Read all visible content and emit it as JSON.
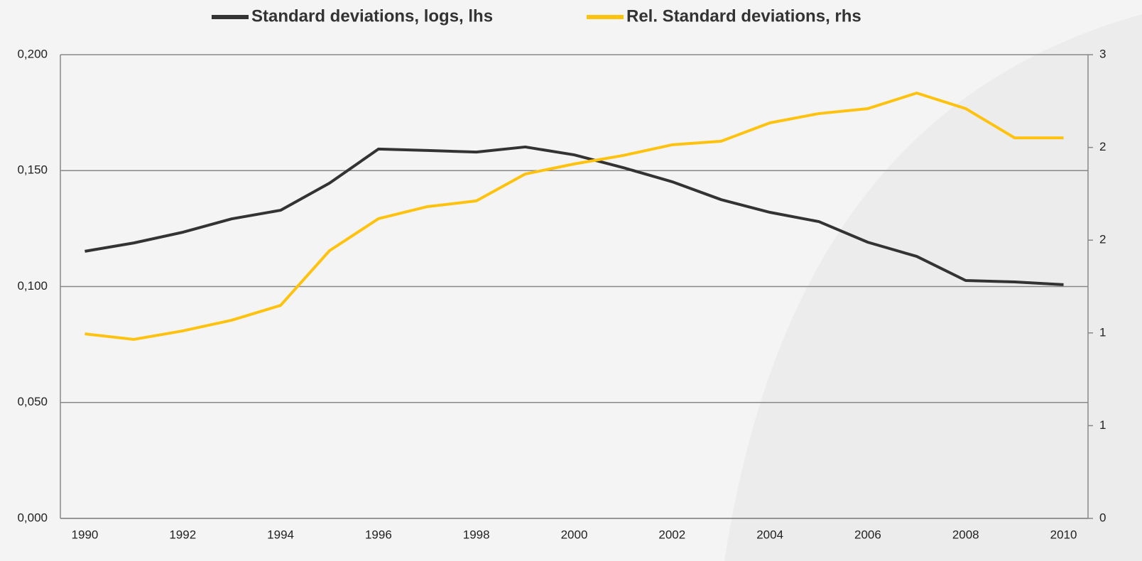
{
  "chart_data": {
    "type": "line",
    "x": [
      1990,
      1991,
      1992,
      1993,
      1994,
      1995,
      1996,
      1997,
      1998,
      1999,
      2000,
      2001,
      2002,
      2003,
      2004,
      2005,
      2006,
      2007,
      2008,
      2009,
      2010
    ],
    "xlim": [
      1989.5,
      2010.5
    ],
    "xticks": [
      1990,
      1992,
      1994,
      1996,
      1998,
      2000,
      2002,
      2004,
      2006,
      2008,
      2010
    ],
    "ylim": [
      0,
      0.2
    ],
    "yticks": [
      {
        "value": 0,
        "label": "0,000"
      },
      {
        "value": 0.05,
        "label": "0,050"
      },
      {
        "value": 0.1,
        "label": "0,100"
      },
      {
        "value": 0.15,
        "label": "0,150"
      },
      {
        "value": 0.2,
        "label": "0,200"
      }
    ],
    "y2lim": [
      0,
      3
    ],
    "y2ticks": [
      0,
      {
        "value": 0.6,
        "label": "1"
      },
      {
        "value": 1.2,
        "label": "1"
      },
      {
        "value": 1.8,
        "label": "2"
      },
      {
        "value": 2.4,
        "label": "2"
      },
      3
    ],
    "grid": true,
    "legend": "top",
    "series": [
      {
        "name": "Standard deviations, logs, lhs",
        "color": "#333333",
        "values": [
          0.1152,
          0.1188,
          0.1234,
          0.1292,
          0.1329,
          0.1446,
          0.1593,
          0.1587,
          0.158,
          0.1602,
          0.1568,
          0.1513,
          0.1452,
          0.1375,
          0.132,
          0.128,
          0.1191,
          0.113,
          0.1026,
          0.102,
          0.1008
        ]
      },
      {
        "name": "Rel. Standard deviations, rhs",
        "color": "#ffc20e",
        "axis": "y2",
        "values": [
          1.194,
          1.158,
          1.213,
          1.282,
          1.378,
          1.732,
          1.939,
          2.017,
          2.054,
          2.228,
          2.293,
          2.348,
          2.417,
          2.44,
          2.559,
          2.619,
          2.651,
          2.752,
          2.651,
          2.462,
          2.462
        ]
      }
    ]
  }
}
